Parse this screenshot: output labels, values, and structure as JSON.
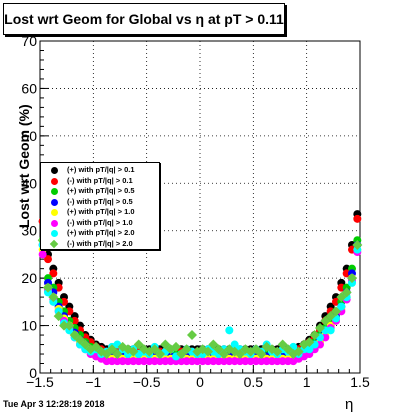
{
  "title": "Lost wrt Geom for Global vs  η at pT > 0.11",
  "timestamp": "Tue Apr  3 12:28:19 2018",
  "chart_data": {
    "type": "scatter",
    "title": "Lost wrt Geom for Global vs  η at pT > 0.11",
    "xlabel": "η",
    "ylabel": "Lost wrt Geom (%)",
    "xlim": [
      -1.5,
      1.5
    ],
    "ylim": [
      0,
      70
    ],
    "xticks": [
      "-1.5",
      "-1",
      "-0.5",
      "0",
      "0.5",
      "1",
      "1.5"
    ],
    "yticks": [
      "0",
      "10",
      "20",
      "30",
      "40",
      "50",
      "60",
      "70"
    ],
    "grid": true,
    "legend_position": "left-middle",
    "series": [
      {
        "name": "(+) with pT/|q| > 0.1",
        "color": "#000000",
        "marker": "circle",
        "x": [
          -1.475,
          -1.425,
          -1.375,
          -1.325,
          -1.275,
          -1.225,
          -1.175,
          -1.125,
          -1.075,
          -1.025,
          -0.975,
          -0.925,
          -0.875,
          -0.825,
          -0.775,
          -0.725,
          -0.675,
          -0.625,
          -0.575,
          -0.525,
          -0.475,
          -0.425,
          -0.375,
          -0.325,
          -0.275,
          -0.225,
          -0.175,
          -0.125,
          -0.075,
          -0.025,
          0.025,
          0.075,
          0.125,
          0.175,
          0.225,
          0.275,
          0.325,
          0.375,
          0.425,
          0.475,
          0.525,
          0.575,
          0.625,
          0.675,
          0.725,
          0.775,
          0.825,
          0.875,
          0.925,
          0.975,
          1.025,
          1.075,
          1.125,
          1.175,
          1.225,
          1.275,
          1.325,
          1.375,
          1.425,
          1.475
        ],
        "y": [
          32,
          25,
          22,
          19,
          16,
          14,
          12,
          10,
          8,
          7,
          6,
          5.5,
          5,
          5,
          5,
          5,
          5,
          5,
          5,
          5,
          5,
          5,
          5,
          5,
          5,
          5,
          5,
          5,
          5,
          5,
          5,
          5,
          5,
          5,
          5,
          5,
          5,
          5,
          5,
          5,
          5,
          5,
          5,
          5,
          5,
          5,
          5,
          5,
          5.5,
          6,
          7,
          8,
          10,
          12,
          14,
          16,
          19,
          22,
          27,
          33.5
        ]
      },
      {
        "name": "(-) with pT/|q| > 0.1",
        "color": "#ff0000",
        "marker": "circle",
        "x": [
          -1.475,
          -1.425,
          -1.375,
          -1.325,
          -1.275,
          -1.225,
          -1.175,
          -1.125,
          -1.075,
          -1.025,
          -0.975,
          -0.925,
          -0.875,
          -0.825,
          -0.775,
          -0.725,
          -0.675,
          -0.625,
          -0.575,
          -0.525,
          -0.475,
          -0.425,
          -0.375,
          -0.325,
          -0.275,
          -0.225,
          -0.175,
          -0.125,
          -0.075,
          -0.025,
          0.025,
          0.075,
          0.125,
          0.175,
          0.225,
          0.275,
          0.325,
          0.375,
          0.425,
          0.475,
          0.525,
          0.575,
          0.625,
          0.675,
          0.725,
          0.775,
          0.825,
          0.875,
          0.925,
          0.975,
          1.025,
          1.075,
          1.125,
          1.175,
          1.225,
          1.275,
          1.325,
          1.375,
          1.425,
          1.475
        ],
        "y": [
          32,
          24,
          21,
          18,
          15,
          13,
          11,
          9,
          7.5,
          6.5,
          5.5,
          5,
          4.5,
          4.5,
          4.5,
          4.5,
          4.5,
          4.5,
          4.5,
          4.5,
          4.5,
          4.5,
          4.5,
          4.5,
          4.5,
          4.5,
          4.5,
          4.5,
          4.5,
          4.5,
          4.5,
          4.5,
          4.5,
          4.5,
          4.5,
          4.5,
          4.5,
          4.5,
          4.5,
          4.5,
          4.5,
          4.5,
          4.5,
          4.5,
          4.5,
          4.5,
          4.5,
          4.5,
          5,
          5.5,
          6.5,
          7.5,
          9,
          11,
          13,
          15,
          18,
          21,
          26,
          32.5
        ]
      },
      {
        "name": "(+) with pT/|q| > 0.5",
        "color": "#00cc00",
        "marker": "circle",
        "x": [
          -1.475,
          -1.425,
          -1.375,
          -1.325,
          -1.275,
          -1.225,
          -1.175,
          -1.125,
          -1.075,
          -1.025,
          -0.975,
          -0.925,
          -0.875,
          -0.825,
          -0.775,
          -0.725,
          -0.675,
          -0.625,
          -0.575,
          -0.525,
          -0.475,
          -0.425,
          -0.375,
          -0.325,
          -0.275,
          -0.225,
          -0.175,
          -0.125,
          -0.075,
          -0.025,
          0.025,
          0.075,
          0.125,
          0.175,
          0.225,
          0.275,
          0.325,
          0.375,
          0.425,
          0.475,
          0.525,
          0.575,
          0.625,
          0.675,
          0.725,
          0.775,
          0.825,
          0.875,
          0.925,
          0.975,
          1.025,
          1.075,
          1.125,
          1.175,
          1.225,
          1.275,
          1.325,
          1.375,
          1.425,
          1.475
        ],
        "y": [
          28,
          20,
          18,
          15,
          13,
          11,
          9.5,
          8,
          6.5,
          5.5,
          5,
          4.5,
          4,
          4,
          4,
          4,
          4,
          4,
          4,
          4,
          4,
          4,
          4,
          4,
          4,
          4,
          4,
          4,
          4,
          4,
          4,
          4,
          4,
          4,
          4,
          4,
          4,
          4,
          4,
          4,
          4,
          4,
          4,
          4,
          4,
          4,
          4,
          4,
          4.5,
          5,
          5.5,
          6.5,
          8,
          9.5,
          11,
          13,
          15,
          18,
          22,
          28
        ]
      },
      {
        "name": "(-) with pT/|q| > 0.5",
        "color": "#0000ff",
        "marker": "circle",
        "x": [
          -1.475,
          -1.425,
          -1.375,
          -1.325,
          -1.275,
          -1.225,
          -1.175,
          -1.125,
          -1.075,
          -1.025,
          -0.975,
          -0.925,
          -0.875,
          -0.825,
          -0.775,
          -0.725,
          -0.675,
          -0.625,
          -0.575,
          -0.525,
          -0.475,
          -0.425,
          -0.375,
          -0.325,
          -0.275,
          -0.225,
          -0.175,
          -0.125,
          -0.075,
          -0.025,
          0.025,
          0.075,
          0.125,
          0.175,
          0.225,
          0.275,
          0.325,
          0.375,
          0.425,
          0.475,
          0.525,
          0.575,
          0.625,
          0.675,
          0.725,
          0.775,
          0.825,
          0.875,
          0.925,
          0.975,
          1.025,
          1.075,
          1.125,
          1.175,
          1.225,
          1.275,
          1.325,
          1.375,
          1.425,
          1.475
        ],
        "y": [
          27,
          19,
          17,
          14,
          12,
          10,
          8.5,
          7,
          6,
          5,
          4.5,
          4,
          3.5,
          3.5,
          3.5,
          3.5,
          3.5,
          3.5,
          3.5,
          3.5,
          3.5,
          3.5,
          3.5,
          3.5,
          3.5,
          3.5,
          3.5,
          3.5,
          3.5,
          3.5,
          3.5,
          3.5,
          3.5,
          3.5,
          3.5,
          3.5,
          3.5,
          3.5,
          3.5,
          3.5,
          3.5,
          3.5,
          3.5,
          3.5,
          3.5,
          3.5,
          3.5,
          3.5,
          4,
          4.5,
          5,
          6,
          7,
          8.5,
          10,
          12,
          14,
          17,
          21,
          27
        ]
      },
      {
        "name": "(+) with pT/|q| > 1.0",
        "color": "#ffff00",
        "marker": "circle",
        "x": [
          -1.475,
          -1.425,
          -1.375,
          -1.325,
          -1.275,
          -1.225,
          -1.175,
          -1.125,
          -1.075,
          -1.025,
          -0.975,
          -0.925,
          -0.875,
          -0.825,
          -0.775,
          -0.725,
          -0.675,
          -0.625,
          -0.575,
          -0.525,
          -0.475,
          -0.425,
          -0.375,
          -0.325,
          -0.275,
          -0.225,
          -0.175,
          -0.125,
          -0.075,
          -0.025,
          0.025,
          0.075,
          0.125,
          0.175,
          0.225,
          0.275,
          0.325,
          0.375,
          0.425,
          0.475,
          0.525,
          0.575,
          0.625,
          0.675,
          0.725,
          0.775,
          0.825,
          0.875,
          0.925,
          0.975,
          1.025,
          1.075,
          1.125,
          1.175,
          1.225,
          1.275,
          1.325,
          1.375,
          1.425,
          1.475
        ],
        "y": [
          26,
          18,
          16,
          13.5,
          11.5,
          10,
          8,
          6.5,
          5.5,
          4.5,
          4,
          3.5,
          3,
          3,
          3,
          3,
          3,
          3,
          3,
          3,
          3,
          3,
          3,
          3,
          3,
          3,
          3,
          3,
          3,
          3,
          3,
          3,
          3,
          3,
          3,
          3,
          3,
          3,
          3,
          3,
          3,
          3,
          3,
          3,
          3,
          3,
          3,
          3,
          3.5,
          4,
          4.5,
          5.5,
          6.5,
          8,
          10,
          11.5,
          13.5,
          16,
          20,
          26
        ]
      },
      {
        "name": "(-) with pT/|q| > 1.0",
        "color": "#ff00ff",
        "marker": "circle",
        "x": [
          -1.475,
          -1.425,
          -1.375,
          -1.325,
          -1.275,
          -1.225,
          -1.175,
          -1.125,
          -1.075,
          -1.025,
          -0.975,
          -0.925,
          -0.875,
          -0.825,
          -0.775,
          -0.725,
          -0.675,
          -0.625,
          -0.575,
          -0.525,
          -0.475,
          -0.425,
          -0.375,
          -0.325,
          -0.275,
          -0.225,
          -0.175,
          -0.125,
          -0.075,
          -0.025,
          0.025,
          0.075,
          0.125,
          0.175,
          0.225,
          0.275,
          0.325,
          0.375,
          0.425,
          0.475,
          0.525,
          0.575,
          0.625,
          0.675,
          0.725,
          0.775,
          0.825,
          0.875,
          0.925,
          0.975,
          1.025,
          1.075,
          1.125,
          1.175,
          1.225,
          1.275,
          1.325,
          1.375,
          1.425,
          1.475
        ],
        "y": [
          25,
          17.5,
          15.5,
          13,
          11,
          9.5,
          7.5,
          6,
          5,
          4,
          3.5,
          3,
          2.5,
          2.5,
          2.5,
          2.5,
          2.5,
          2.5,
          2.5,
          2.5,
          2.5,
          2.5,
          2.5,
          2.5,
          2.5,
          2.5,
          2.5,
          2.5,
          2.5,
          2.5,
          2.5,
          2.5,
          2.5,
          2.5,
          2.5,
          2.5,
          2.5,
          2.5,
          2.5,
          2.5,
          2.5,
          2.5,
          2.5,
          2.5,
          2.5,
          2.5,
          2.5,
          2.5,
          3,
          3.5,
          4,
          5,
          6,
          7.5,
          9.5,
          11,
          13,
          15.5,
          19.5,
          25.5
        ]
      },
      {
        "name": "(+) with pT/|q| > 2.0",
        "color": "#00ffff",
        "marker": "circle",
        "x": [
          -1.475,
          -1.425,
          -1.375,
          -1.325,
          -1.275,
          -1.225,
          -1.175,
          -1.125,
          -1.075,
          -1.025,
          -0.975,
          -0.925,
          -0.875,
          -0.825,
          -0.775,
          -0.725,
          -0.675,
          -0.625,
          -0.575,
          -0.525,
          -0.475,
          -0.425,
          -0.375,
          -0.325,
          -0.275,
          -0.225,
          -0.175,
          -0.125,
          -0.075,
          -0.025,
          0.025,
          0.075,
          0.125,
          0.175,
          0.225,
          0.275,
          0.325,
          0.375,
          0.425,
          0.475,
          0.525,
          0.575,
          0.625,
          0.675,
          0.725,
          0.775,
          0.825,
          0.875,
          0.925,
          0.975,
          1.025,
          1.075,
          1.125,
          1.175,
          1.225,
          1.275,
          1.325,
          1.375,
          1.425,
          1.475
        ],
        "y": [
          27,
          17,
          15,
          13,
          10.5,
          9,
          7.5,
          6,
          5,
          4.5,
          5,
          4,
          4.5,
          5.5,
          6,
          5,
          4,
          5,
          4,
          4.5,
          4,
          5.5,
          4,
          4.5,
          5,
          3.5,
          4,
          5,
          4.5,
          4,
          4,
          5,
          4.5,
          4,
          5,
          9,
          6,
          5,
          4.5,
          4,
          5,
          4.5,
          6,
          4.5,
          4,
          5,
          4.5,
          5.5,
          4,
          5,
          5,
          6,
          7.5,
          9,
          9,
          11.5,
          14,
          16,
          19,
          26
        ]
      },
      {
        "name": "(-) with pT/|q| > 2.0",
        "color": "#66cc44",
        "marker": "diamond",
        "x": [
          -1.475,
          -1.425,
          -1.375,
          -1.325,
          -1.275,
          -1.225,
          -1.175,
          -1.125,
          -1.075,
          -1.025,
          -0.975,
          -0.925,
          -0.875,
          -0.825,
          -0.775,
          -0.725,
          -0.675,
          -0.625,
          -0.575,
          -0.525,
          -0.475,
          -0.425,
          -0.375,
          -0.325,
          -0.275,
          -0.225,
          -0.175,
          -0.125,
          -0.075,
          -0.025,
          0.025,
          0.075,
          0.125,
          0.175,
          0.225,
          0.275,
          0.325,
          0.375,
          0.425,
          0.475,
          0.525,
          0.575,
          0.625,
          0.675,
          0.725,
          0.775,
          0.825,
          0.875,
          0.925,
          0.975,
          1.025,
          1.075,
          1.125,
          1.175,
          1.225,
          1.275,
          1.325,
          1.375,
          1.425,
          1.475
        ],
        "y": [
          28,
          18,
          16,
          12,
          10,
          10,
          8,
          7,
          6,
          5,
          5.5,
          4.5,
          4,
          5,
          4,
          5.5,
          5,
          4.5,
          6,
          5,
          4.5,
          5,
          4,
          6,
          5,
          5.5,
          4,
          5,
          8,
          4.5,
          5,
          4.5,
          6,
          5,
          4,
          5,
          4.5,
          4,
          5,
          4.5,
          5,
          4,
          5.5,
          5,
          4.5,
          6,
          5,
          4,
          4.5,
          6,
          6.5,
          8,
          9.5,
          11,
          12,
          13,
          16,
          17,
          20,
          27
        ]
      }
    ]
  }
}
